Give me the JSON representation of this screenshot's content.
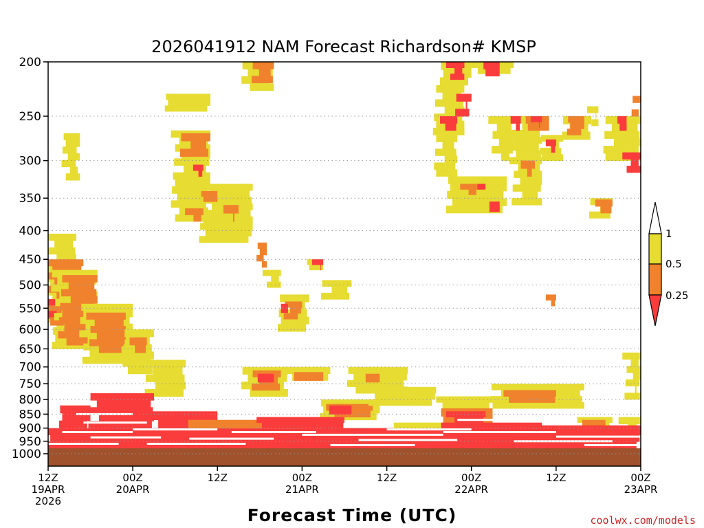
{
  "chart_data": {
    "type": "heatmap",
    "title": "2026041912 NAM Forecast Richardson# KMSP",
    "xlabel": "Forecast Time (UTC)",
    "ylabel": "",
    "credit": "coolwx.com/models",
    "y_ticks": [
      "200",
      "250",
      "300",
      "350",
      "400",
      "450",
      "500",
      "550",
      "600",
      "650",
      "700",
      "750",
      "800",
      "850",
      "900",
      "950",
      "1000"
    ],
    "y_values": [
      200,
      250,
      300,
      350,
      400,
      450,
      500,
      550,
      600,
      650,
      700,
      750,
      800,
      850,
      900,
      950,
      1000
    ],
    "ylim": [
      200,
      1000
    ],
    "x_hours_range": [
      0,
      84
    ],
    "x_ticks": [
      {
        "hour": 0,
        "line1": "12Z",
        "line2": "19APR",
        "line3": "2026"
      },
      {
        "hour": 12,
        "line1": "00Z",
        "line2": "20APR",
        "line3": ""
      },
      {
        "hour": 24,
        "line1": "12Z",
        "line2": "",
        "line3": ""
      },
      {
        "hour": 36,
        "line1": "00Z",
        "line2": "21APR",
        "line3": ""
      },
      {
        "hour": 48,
        "line1": "12Z",
        "line2": "",
        "line3": ""
      },
      {
        "hour": 60,
        "line1": "00Z",
        "line2": "22APR",
        "line3": ""
      },
      {
        "hour": 72,
        "line1": "12Z",
        "line2": "",
        "line3": ""
      },
      {
        "hour": 84,
        "line1": "00Z",
        "line2": "23APR",
        "line3": ""
      }
    ],
    "colorbar": {
      "levels": [
        "1",
        "0.5",
        "0.25"
      ],
      "colors": {
        "gt1": "#ffffff",
        "0.5-1": "#e6dc32",
        "0.25-0.5": "#f0822d",
        "lt0.25": "#fa3c3c"
      }
    },
    "colors": {
      "yellow": "#e6dc32",
      "orange": "#f0822d",
      "red": "#fa3c3c",
      "ground": "#a0522d",
      "grid": "#999999"
    },
    "ground_top_mb": 978,
    "regions": [
      {
        "h0": 0,
        "h1": 4,
        "p0": 405,
        "p1": 600,
        "c": "yellow"
      },
      {
        "h0": 2.5,
        "h1": 4.5,
        "p0": 268,
        "p1": 325,
        "c": "yellow"
      },
      {
        "h0": 0,
        "h1": 5,
        "p0": 450,
        "p1": 590,
        "c": "orange"
      },
      {
        "h0": 0,
        "h1": 1.5,
        "p0": 530,
        "p1": 570,
        "c": "red"
      },
      {
        "h0": 1,
        "h1": 7,
        "p0": 470,
        "p1": 650,
        "c": "yellow"
      },
      {
        "h0": 2,
        "h1": 7,
        "p0": 480,
        "p1": 640,
        "c": "orange"
      },
      {
        "h0": 5,
        "h1": 12,
        "p0": 540,
        "p1": 690,
        "c": "yellow"
      },
      {
        "h0": 6,
        "h1": 11,
        "p0": 560,
        "p1": 660,
        "c": "orange"
      },
      {
        "h0": 11,
        "h1": 15,
        "p0": 600,
        "p1": 720,
        "c": "yellow"
      },
      {
        "h0": 12,
        "h1": 14,
        "p0": 620,
        "p1": 660,
        "c": "orange"
      },
      {
        "h0": 14,
        "h1": 19.5,
        "p0": 680,
        "p1": 790,
        "c": "yellow"
      },
      {
        "h0": 17,
        "h1": 23,
        "p0": 228,
        "p1": 245,
        "c": "yellow"
      },
      {
        "h0": 18,
        "h1": 23,
        "p0": 265,
        "p1": 385,
        "c": "yellow"
      },
      {
        "h0": 19,
        "h1": 23,
        "p0": 268,
        "p1": 295,
        "c": "orange"
      },
      {
        "h0": 21,
        "h1": 22,
        "p0": 305,
        "p1": 320,
        "c": "red"
      },
      {
        "h0": 22,
        "h1": 29,
        "p0": 330,
        "p1": 420,
        "c": "yellow"
      },
      {
        "h0": 22,
        "h1": 24,
        "p0": 340,
        "p1": 355,
        "c": "orange"
      },
      {
        "h0": 20,
        "h1": 22,
        "p0": 365,
        "p1": 385,
        "c": "orange"
      },
      {
        "h0": 25,
        "h1": 27,
        "p0": 360,
        "p1": 385,
        "c": "orange"
      },
      {
        "h0": 28,
        "h1": 32,
        "p0": 200,
        "p1": 225,
        "c": "yellow"
      },
      {
        "h0": 29,
        "h1": 32,
        "p0": 200,
        "p1": 218,
        "c": "orange"
      },
      {
        "h0": 30,
        "h1": 31,
        "p0": 420,
        "p1": 465,
        "c": "orange"
      },
      {
        "h0": 31,
        "h1": 33,
        "p0": 470,
        "p1": 505,
        "c": "yellow"
      },
      {
        "h0": 33,
        "h1": 37,
        "p0": 520,
        "p1": 605,
        "c": "yellow"
      },
      {
        "h0": 34,
        "h1": 36,
        "p0": 535,
        "p1": 575,
        "c": "orange"
      },
      {
        "h0": 33,
        "h1": 34,
        "p0": 540,
        "p1": 560,
        "c": "red"
      },
      {
        "h0": 37,
        "h1": 39,
        "p0": 450,
        "p1": 470,
        "c": "yellow"
      },
      {
        "h0": 38,
        "h1": 39,
        "p0": 450,
        "p1": 470,
        "c": "red"
      },
      {
        "h0": 39,
        "h1": 43,
        "p0": 490,
        "p1": 530,
        "c": "yellow"
      },
      {
        "h0": 28,
        "h1": 34,
        "p0": 700,
        "p1": 790,
        "c": "yellow"
      },
      {
        "h0": 29,
        "h1": 33,
        "p0": 710,
        "p1": 770,
        "c": "orange"
      },
      {
        "h0": 30,
        "h1": 32,
        "p0": 720,
        "p1": 745,
        "c": "red"
      },
      {
        "h0": 34,
        "h1": 40,
        "p0": 700,
        "p1": 740,
        "c": "yellow"
      },
      {
        "h0": 35,
        "h1": 39,
        "p0": 715,
        "p1": 740,
        "c": "orange"
      },
      {
        "h0": 43,
        "h1": 51,
        "p0": 700,
        "p1": 780,
        "c": "yellow"
      },
      {
        "h0": 45,
        "h1": 47,
        "p0": 720,
        "p1": 745,
        "c": "orange"
      },
      {
        "h0": 39,
        "h1": 47,
        "p0": 800,
        "p1": 870,
        "c": "yellow"
      },
      {
        "h0": 40,
        "h1": 46,
        "p0": 815,
        "p1": 860,
        "c": "orange"
      },
      {
        "h0": 40,
        "h1": 43,
        "p0": 820,
        "p1": 850,
        "c": "red"
      },
      {
        "h0": 46,
        "h1": 55,
        "p0": 760,
        "p1": 820,
        "c": "yellow"
      },
      {
        "h0": 55,
        "h1": 59,
        "p0": 220,
        "p1": 270,
        "c": "yellow"
      },
      {
        "h0": 56,
        "h1": 60,
        "p0": 200,
        "p1": 220,
        "c": "yellow"
      },
      {
        "h0": 57,
        "h1": 59,
        "p0": 200,
        "p1": 215,
        "c": "red"
      },
      {
        "h0": 58,
        "h1": 60,
        "p0": 228,
        "p1": 250,
        "c": "red"
      },
      {
        "h0": 56,
        "h1": 58,
        "p0": 250,
        "p1": 265,
        "c": "red"
      },
      {
        "h0": 55,
        "h1": 58,
        "p0": 270,
        "p1": 320,
        "c": "yellow"
      },
      {
        "h0": 57,
        "h1": 65,
        "p0": 320,
        "p1": 372,
        "c": "yellow"
      },
      {
        "h0": 59,
        "h1": 61,
        "p0": 330,
        "p1": 345,
        "c": "orange"
      },
      {
        "h0": 61,
        "h1": 62,
        "p0": 330,
        "p1": 345,
        "c": "red"
      },
      {
        "h0": 63,
        "h1": 64,
        "p0": 355,
        "p1": 370,
        "c": "red"
      },
      {
        "h0": 60,
        "h1": 66,
        "p0": 200,
        "p1": 210,
        "c": "yellow"
      },
      {
        "h0": 62,
        "h1": 64,
        "p0": 200,
        "p1": 212,
        "c": "red"
      },
      {
        "h0": 63,
        "h1": 66,
        "p0": 250,
        "p1": 300,
        "c": "yellow"
      },
      {
        "h0": 66,
        "h1": 70,
        "p0": 250,
        "p1": 360,
        "c": "yellow"
      },
      {
        "h0": 66,
        "h1": 67,
        "p0": 250,
        "p1": 265,
        "c": "red"
      },
      {
        "h0": 67,
        "h1": 69,
        "p0": 300,
        "p1": 320,
        "c": "orange"
      },
      {
        "h0": 68,
        "h1": 71,
        "p0": 250,
        "p1": 265,
        "c": "orange"
      },
      {
        "h0": 69,
        "h1": 70,
        "p0": 250,
        "p1": 262,
        "c": "red"
      },
      {
        "h0": 70,
        "h1": 73,
        "p0": 270,
        "p1": 300,
        "c": "yellow"
      },
      {
        "h0": 71,
        "h1": 72,
        "p0": 275,
        "p1": 290,
        "c": "red"
      },
      {
        "h0": 73,
        "h1": 77,
        "p0": 250,
        "p1": 275,
        "c": "yellow"
      },
      {
        "h0": 74,
        "h1": 76,
        "p0": 250,
        "p1": 270,
        "c": "orange"
      },
      {
        "h0": 77,
        "h1": 78,
        "p0": 240,
        "p1": 260,
        "c": "yellow"
      },
      {
        "h0": 77,
        "h1": 80,
        "p0": 350,
        "p1": 380,
        "c": "yellow"
      },
      {
        "h0": 78,
        "h1": 80,
        "p0": 352,
        "p1": 372,
        "c": "orange"
      },
      {
        "h0": 79,
        "h1": 84,
        "p0": 250,
        "p1": 300,
        "c": "yellow"
      },
      {
        "h0": 81,
        "h1": 82,
        "p0": 250,
        "p1": 265,
        "c": "red"
      },
      {
        "h0": 82,
        "h1": 84,
        "p0": 290,
        "p1": 315,
        "c": "red"
      },
      {
        "h0": 83,
        "h1": 84,
        "p0": 230,
        "p1": 250,
        "c": "orange"
      },
      {
        "h0": 71,
        "h1": 72,
        "p0": 520,
        "p1": 545,
        "c": "orange"
      },
      {
        "h0": 55,
        "h1": 63,
        "p0": 790,
        "p1": 830,
        "c": "yellow"
      },
      {
        "h0": 56,
        "h1": 63,
        "p0": 830,
        "p1": 885,
        "c": "orange"
      },
      {
        "h0": 57,
        "h1": 62,
        "p0": 840,
        "p1": 880,
        "c": "red"
      },
      {
        "h0": 63,
        "h1": 76,
        "p0": 750,
        "p1": 830,
        "c": "yellow"
      },
      {
        "h0": 65,
        "h1": 72,
        "p0": 770,
        "p1": 810,
        "c": "orange"
      },
      {
        "h0": 75,
        "h1": 80,
        "p0": 860,
        "p1": 900,
        "c": "yellow"
      },
      {
        "h0": 76,
        "h1": 79,
        "p0": 870,
        "p1": 920,
        "c": "orange"
      },
      {
        "h0": 82,
        "h1": 84,
        "p0": 660,
        "p1": 800,
        "c": "yellow"
      },
      {
        "h0": 81,
        "h1": 84,
        "p0": 860,
        "p1": 910,
        "c": "yellow"
      },
      {
        "h0": 0,
        "h1": 84,
        "p0": 900,
        "p1": 978,
        "c": "red"
      },
      {
        "h0": 6,
        "h1": 15,
        "p0": 780,
        "p1": 900,
        "c": "red"
      },
      {
        "h0": 2,
        "h1": 6,
        "p0": 820,
        "p1": 900,
        "c": "red"
      },
      {
        "h0": 15,
        "h1": 24,
        "p0": 840,
        "p1": 900,
        "c": "red"
      },
      {
        "h0": 20,
        "h1": 36,
        "p0": 870,
        "p1": 900,
        "c": "orange"
      },
      {
        "h0": 30,
        "h1": 42,
        "p0": 860,
        "p1": 900,
        "c": "red"
      },
      {
        "h0": 49,
        "h1": 56,
        "p0": 880,
        "p1": 900,
        "c": "yellow"
      },
      {
        "h0": 56,
        "h1": 70,
        "p0": 880,
        "p1": 900,
        "c": "red"
      },
      {
        "h0": 70,
        "h1": 84,
        "p0": 890,
        "p1": 900,
        "c": "red"
      }
    ],
    "white_streaks": [
      {
        "h0": 4,
        "h1": 12,
        "p": 850
      },
      {
        "h0": 5,
        "h1": 14,
        "p": 880
      },
      {
        "h0": 2,
        "h1": 12,
        "p": 915
      },
      {
        "h0": 6,
        "h1": 16,
        "p": 935
      },
      {
        "h0": 12,
        "h1": 24,
        "p": 905
      },
      {
        "h0": 14,
        "h1": 28,
        "p": 960
      },
      {
        "h0": 20,
        "h1": 32,
        "p": 940
      },
      {
        "h0": 36,
        "h1": 56,
        "p": 925
      },
      {
        "h0": 44,
        "h1": 58,
        "p": 945
      },
      {
        "h0": 40,
        "h1": 52,
        "p": 965
      },
      {
        "h0": 56,
        "h1": 72,
        "p": 915
      },
      {
        "h0": 58,
        "h1": 66,
        "p": 870
      },
      {
        "h0": 66,
        "h1": 80,
        "p": 950
      },
      {
        "h0": 72,
        "h1": 84,
        "p": 932
      },
      {
        "h0": 0,
        "h1": 10,
        "p": 960
      },
      {
        "h0": 26,
        "h1": 38,
        "p": 915
      },
      {
        "h0": 48,
        "h1": 60,
        "p": 905
      },
      {
        "h0": 76,
        "h1": 84,
        "p": 965
      }
    ]
  }
}
